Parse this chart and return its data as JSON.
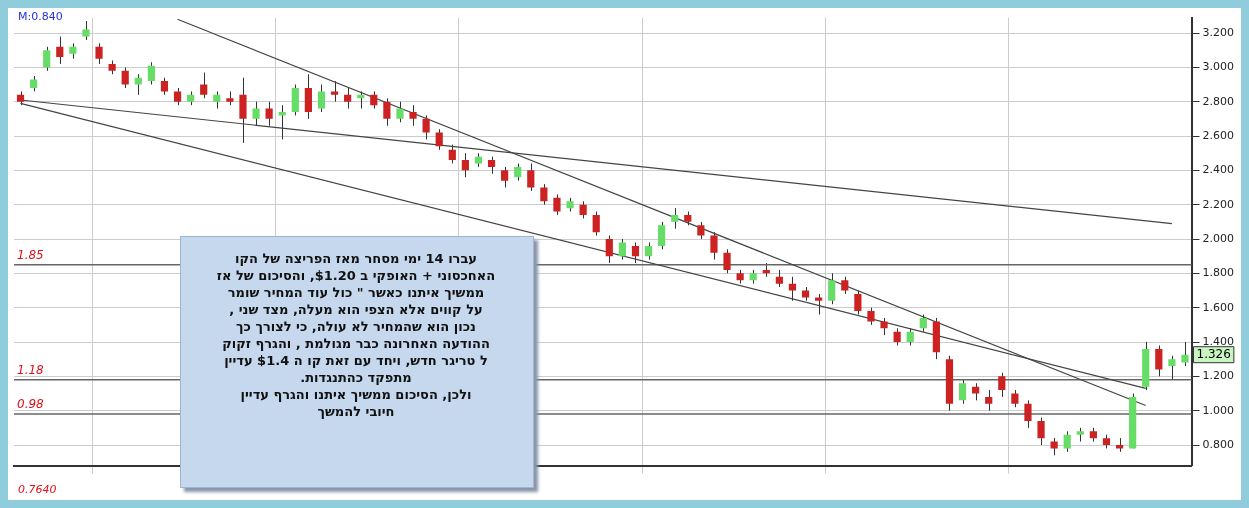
{
  "chart_data": {
    "type": "candlestick",
    "categories": [
      null,
      null,
      null,
      null,
      null,
      null,
      null,
      null,
      null,
      null,
      null,
      null,
      null,
      null,
      null,
      null,
      null,
      null,
      null,
      null,
      null,
      null,
      null,
      null,
      null,
      null,
      null,
      null,
      null,
      null,
      null,
      null,
      null,
      null,
      null,
      null,
      null,
      null,
      null,
      null,
      null,
      null,
      null,
      null,
      null,
      null,
      null,
      null,
      null,
      null,
      null,
      null,
      null,
      null,
      null,
      null,
      null,
      null,
      null,
      null,
      null,
      null,
      null,
      null,
      null,
      null,
      null,
      null,
      null,
      null,
      null,
      null,
      null,
      null,
      null,
      null,
      null,
      null,
      null,
      null,
      null,
      null,
      null,
      null,
      null,
      null,
      null,
      null,
      null,
      null
    ],
    "ohlc": [
      [
        2.84,
        2.86,
        2.78,
        2.8
      ],
      [
        2.88,
        2.95,
        2.86,
        2.93
      ],
      [
        3.0,
        3.12,
        2.98,
        3.1
      ],
      [
        3.12,
        3.18,
        3.02,
        3.06
      ],
      [
        3.08,
        3.14,
        3.05,
        3.12
      ],
      [
        3.18,
        3.27,
        3.16,
        3.22
      ],
      [
        3.12,
        3.14,
        3.02,
        3.05
      ],
      [
        3.02,
        3.04,
        2.96,
        2.98
      ],
      [
        2.98,
        3.0,
        2.88,
        2.9
      ],
      [
        2.9,
        2.96,
        2.84,
        2.94
      ],
      [
        2.92,
        3.03,
        2.9,
        3.01
      ],
      [
        2.92,
        2.94,
        2.84,
        2.86
      ],
      [
        2.86,
        2.88,
        2.78,
        2.8
      ],
      [
        2.8,
        2.86,
        2.78,
        2.84
      ],
      [
        2.9,
        2.97,
        2.82,
        2.84
      ],
      [
        2.8,
        2.86,
        2.76,
        2.84
      ],
      [
        2.82,
        2.86,
        2.78,
        2.8
      ],
      [
        2.84,
        2.94,
        2.56,
        2.7
      ],
      [
        2.7,
        2.8,
        2.66,
        2.76
      ],
      [
        2.76,
        2.8,
        2.66,
        2.7
      ],
      [
        2.72,
        2.78,
        2.58,
        2.74
      ],
      [
        2.74,
        2.9,
        2.72,
        2.88
      ],
      [
        2.88,
        2.96,
        2.7,
        2.74
      ],
      [
        2.76,
        2.9,
        2.74,
        2.86
      ],
      [
        2.86,
        2.92,
        2.8,
        2.84
      ],
      [
        2.84,
        2.88,
        2.76,
        2.8
      ],
      [
        2.82,
        2.86,
        2.76,
        2.84
      ],
      [
        2.84,
        2.86,
        2.76,
        2.78
      ],
      [
        2.8,
        2.82,
        2.66,
        2.7
      ],
      [
        2.7,
        2.8,
        2.68,
        2.76
      ],
      [
        2.74,
        2.78,
        2.66,
        2.7
      ],
      [
        2.7,
        2.72,
        2.58,
        2.62
      ],
      [
        2.62,
        2.64,
        2.52,
        2.54
      ],
      [
        2.52,
        2.55,
        2.44,
        2.46
      ],
      [
        2.46,
        2.5,
        2.36,
        2.4
      ],
      [
        2.44,
        2.5,
        2.42,
        2.48
      ],
      [
        2.46,
        2.48,
        2.38,
        2.42
      ],
      [
        2.4,
        2.42,
        2.3,
        2.34
      ],
      [
        2.36,
        2.44,
        2.34,
        2.42
      ],
      [
        2.4,
        2.44,
        2.28,
        2.3
      ],
      [
        2.3,
        2.32,
        2.2,
        2.22
      ],
      [
        2.24,
        2.26,
        2.14,
        2.16
      ],
      [
        2.18,
        2.24,
        2.16,
        2.22
      ],
      [
        2.2,
        2.22,
        2.12,
        2.14
      ],
      [
        2.14,
        2.16,
        2.02,
        2.04
      ],
      [
        2.0,
        2.02,
        1.86,
        1.9
      ],
      [
        1.9,
        2.0,
        1.88,
        1.98
      ],
      [
        1.96,
        1.98,
        1.86,
        1.9
      ],
      [
        1.9,
        1.98,
        1.88,
        1.96
      ],
      [
        1.96,
        2.1,
        1.94,
        2.08
      ],
      [
        2.1,
        2.18,
        2.06,
        2.14
      ],
      [
        2.14,
        2.16,
        2.08,
        2.1
      ],
      [
        2.08,
        2.1,
        2.0,
        2.02
      ],
      [
        2.02,
        2.04,
        1.88,
        1.92
      ],
      [
        1.92,
        1.94,
        1.8,
        1.82
      ],
      [
        1.8,
        1.82,
        1.74,
        1.76
      ],
      [
        1.76,
        1.82,
        1.74,
        1.8
      ],
      [
        1.82,
        1.86,
        1.78,
        1.8
      ],
      [
        1.78,
        1.82,
        1.72,
        1.74
      ],
      [
        1.74,
        1.78,
        1.64,
        1.7
      ],
      [
        1.7,
        1.72,
        1.64,
        1.66
      ],
      [
        1.66,
        1.68,
        1.56,
        1.64
      ],
      [
        1.64,
        1.8,
        1.62,
        1.76
      ],
      [
        1.76,
        1.78,
        1.68,
        1.7
      ],
      [
        1.68,
        1.7,
        1.56,
        1.58
      ],
      [
        1.58,
        1.6,
        1.5,
        1.52
      ],
      [
        1.52,
        1.54,
        1.44,
        1.48
      ],
      [
        1.46,
        1.48,
        1.38,
        1.4
      ],
      [
        1.4,
        1.48,
        1.38,
        1.46
      ],
      [
        1.48,
        1.56,
        1.46,
        1.54
      ],
      [
        1.52,
        1.54,
        1.3,
        1.34
      ],
      [
        1.3,
        1.32,
        1.0,
        1.04
      ],
      [
        1.06,
        1.18,
        1.04,
        1.16
      ],
      [
        1.14,
        1.16,
        1.06,
        1.1
      ],
      [
        1.08,
        1.12,
        1.0,
        1.04
      ],
      [
        1.2,
        1.22,
        1.08,
        1.12
      ],
      [
        1.1,
        1.12,
        1.02,
        1.04
      ],
      [
        1.04,
        1.06,
        0.9,
        0.94
      ],
      [
        0.94,
        0.96,
        0.8,
        0.84
      ],
      [
        0.82,
        0.84,
        0.74,
        0.78
      ],
      [
        0.78,
        0.88,
        0.76,
        0.86
      ],
      [
        0.86,
        0.9,
        0.82,
        0.88
      ],
      [
        0.88,
        0.9,
        0.82,
        0.84
      ],
      [
        0.84,
        0.86,
        0.78,
        0.8
      ],
      [
        0.8,
        0.84,
        0.76,
        0.78
      ],
      [
        0.78,
        1.1,
        0.78,
        1.08
      ],
      [
        1.14,
        1.4,
        1.12,
        1.36
      ],
      [
        1.36,
        1.38,
        1.2,
        1.24
      ],
      [
        1.26,
        1.32,
        1.18,
        1.3
      ],
      [
        1.28,
        1.4,
        1.26,
        1.326
      ]
    ],
    "colors": [
      "#cc2222",
      "#66dd66",
      "#66dd66",
      "#cc2222",
      "#66dd66",
      "#66dd66",
      "#cc2222",
      "#cc2222",
      "#cc2222",
      "#66dd66",
      "#66dd66",
      "#cc2222",
      "#cc2222",
      "#66dd66",
      "#cc2222",
      "#66dd66",
      "#cc2222",
      "#cc2222",
      "#66dd66",
      "#cc2222",
      "#66dd66",
      "#66dd66",
      "#cc2222",
      "#66dd66",
      "#cc2222",
      "#cc2222",
      "#66dd66",
      "#cc2222",
      "#cc2222",
      "#66dd66",
      "#cc2222",
      "#cc2222",
      "#cc2222",
      "#cc2222",
      "#cc2222",
      "#66dd66",
      "#cc2222",
      "#cc2222",
      "#66dd66",
      "#cc2222",
      "#cc2222",
      "#cc2222",
      "#66dd66",
      "#cc2222",
      "#cc2222",
      "#cc2222",
      "#66dd66",
      "#cc2222",
      "#66dd66",
      "#66dd66",
      "#66dd66",
      "#cc2222",
      "#cc2222",
      "#cc2222",
      "#cc2222",
      "#cc2222",
      "#66dd66",
      "#cc2222",
      "#cc2222",
      "#cc2222",
      "#cc2222",
      "#cc2222",
      "#66dd66",
      "#cc2222",
      "#cc2222",
      "#cc2222",
      "#cc2222",
      "#cc2222",
      "#66dd66",
      "#66dd66",
      "#cc2222",
      "#cc2222",
      "#66dd66",
      "#cc2222",
      "#cc2222",
      "#cc2222",
      "#cc2222",
      "#cc2222",
      "#cc2222",
      "#cc2222",
      "#66dd66",
      "#66dd66",
      "#cc2222",
      "#cc2222",
      "#cc2222",
      "#66dd66",
      "#66dd66",
      "#cc2222",
      "#66dd66",
      "#66dd66"
    ],
    "series": [
      {
        "type": "line",
        "color": "#444444",
        "values": [
          2.81,
          null,
          null,
          null,
          null,
          null,
          null,
          null,
          null,
          null,
          null,
          null,
          null,
          null,
          null,
          null,
          null,
          null,
          null,
          null,
          null,
          null,
          null,
          null,
          null,
          null,
          null,
          null,
          null,
          null,
          null,
          null,
          null,
          null,
          null,
          null,
          null,
          null,
          null,
          null,
          null,
          null,
          null,
          null,
          null,
          null,
          null,
          null,
          null,
          null,
          null,
          null,
          null,
          null,
          null,
          null,
          null,
          null,
          null,
          null,
          null,
          null,
          null,
          null,
          null,
          null,
          null,
          null,
          null,
          null,
          null,
          null,
          null,
          null,
          null,
          null,
          null,
          null,
          null,
          null,
          null,
          null,
          null,
          null,
          null,
          null,
          null,
          null,
          2.09,
          null
        ]
      },
      {
        "type": "line",
        "color": "#444444",
        "values": [
          null,
          null,
          null,
          null,
          null,
          null,
          null,
          null,
          null,
          null,
          null,
          null,
          3.28,
          null,
          null,
          null,
          null,
          null,
          null,
          null,
          null,
          null,
          null,
          null,
          null,
          null,
          null,
          null,
          null,
          null,
          null,
          null,
          null,
          null,
          null,
          null,
          null,
          null,
          null,
          null,
          null,
          null,
          null,
          null,
          null,
          null,
          null,
          null,
          null,
          null,
          null,
          null,
          null,
          null,
          null,
          null,
          null,
          null,
          null,
          null,
          null,
          null,
          null,
          null,
          null,
          null,
          null,
          null,
          null,
          null,
          null,
          null,
          null,
          null,
          null,
          null,
          null,
          null,
          null,
          null,
          null,
          null,
          null,
          null,
          null,
          null,
          1.03,
          null,
          null,
          null
        ]
      },
      {
        "type": "line",
        "color": "#444444",
        "values": [
          2.79,
          null,
          null,
          null,
          null,
          null,
          null,
          null,
          null,
          null,
          null,
          null,
          null,
          null,
          null,
          null,
          null,
          null,
          null,
          null,
          null,
          null,
          null,
          null,
          null,
          null,
          null,
          null,
          null,
          null,
          null,
          null,
          null,
          null,
          null,
          null,
          null,
          null,
          null,
          null,
          null,
          null,
          null,
          null,
          null,
          null,
          null,
          null,
          null,
          null,
          null,
          null,
          null,
          null,
          null,
          null,
          null,
          null,
          null,
          null,
          null,
          null,
          null,
          null,
          null,
          null,
          null,
          null,
          null,
          null,
          null,
          null,
          null,
          null,
          null,
          null,
          null,
          null,
          null,
          null,
          null,
          null,
          null,
          null,
          null,
          null,
          1.13,
          null,
          null,
          null
        ]
      }
    ],
    "ylim": [
      0.68,
      3.29
    ],
    "yticks": [
      {
        "value": 0.8,
        "label": "0.800"
      },
      {
        "value": 1.0,
        "label": "1.000"
      },
      {
        "value": 1.2,
        "label": "1.200"
      },
      {
        "value": 1.4,
        "label": "1.400"
      },
      {
        "value": 1.6,
        "label": "1.600"
      },
      {
        "value": 1.8,
        "label": "1.800"
      },
      {
        "value": 2.0,
        "label": "2.000"
      },
      {
        "value": 2.2,
        "label": "2.200"
      },
      {
        "value": 2.4,
        "label": "2.400"
      },
      {
        "value": 2.6,
        "label": "2.600"
      },
      {
        "value": 2.8,
        "label": "2.800"
      },
      {
        "value": 3.0,
        "label": "3.000"
      },
      {
        "value": 3.2,
        "label": "3.200"
      }
    ],
    "ref_lines": [
      {
        "axis": "y",
        "value": 1.85,
        "label": "1.85",
        "color": "#666666"
      },
      {
        "axis": "y",
        "value": 1.18,
        "label": "1.18",
        "color": "#666666"
      },
      {
        "axis": "y",
        "value": 0.98,
        "label": "0.98",
        "color": "#666666"
      }
    ],
    "annotations": [
      "עברו  14  ימי מסחר מאז הפריצה של הקו\nהאחכסוני +  האופקי  ב $1.20, והסיכום  של אז\nממשיך  איתנו כאשר  \" כול עוד  המחיר  שומר\nעל קווים אלא  הצפי הוא  מעלה, מצד  שני ,\nנכון הוא   שהמחיר לא  עולה, כי  לצורך  כך\nההודעה האחרונה  כבר  מגולמת , והגרף  זקוק\nל טריגר  חדש, ויחד  עם  זאת קו  ה $1.4  עדיין\nמתפקד  כהתנגדות.\nולכן,  הסיכום  ממשיך   איתנו  והגרף  עדיין\nחיובי  להמשך",
      "M:0.840",
      "0.7640",
      {
        "text": "1.326",
        "y": 1.326
      }
    ],
    "grid": true,
    "legend": false
  }
}
